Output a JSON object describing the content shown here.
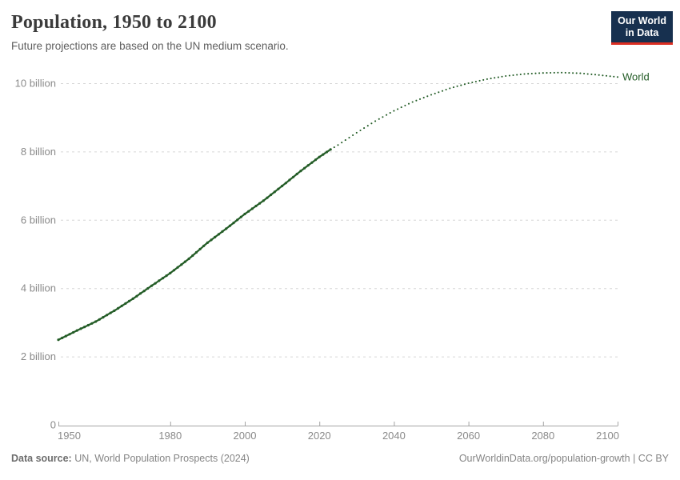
{
  "header": {
    "title": "Population, 1950 to 2100",
    "subtitle": "Future projections are based on the UN medium scenario.",
    "logo": {
      "line1": "Our World",
      "line2": "in Data"
    }
  },
  "footer": {
    "source_label": "Data source:",
    "source_text": "UN, World Population Prospects (2024)",
    "credit": "OurWorldinData.org/population-growth | CC BY"
  },
  "colors": {
    "line": "#235c26",
    "grid": "#d6d6d6",
    "axis": "#a3a3a3",
    "tick": "#8a8a8a",
    "title": "#3b3b3b",
    "sub": "#5e5e5e",
    "foot": "#858585",
    "foot-b": "#6d6d6d",
    "navy": "#17304f",
    "red": "#dc2e22"
  },
  "chart_data": {
    "type": "line",
    "title": "Population, 1950 to 2100",
    "subtitle": "Future projections are based on the UN medium scenario.",
    "series_label": "World",
    "units": "billions of people",
    "projection_start_year": 2023,
    "projection_style": "dotted",
    "x": [
      1950,
      1955,
      1960,
      1965,
      1970,
      1975,
      1980,
      1985,
      1990,
      1995,
      2000,
      2005,
      2010,
      2015,
      2020,
      2023,
      2025,
      2030,
      2035,
      2040,
      2045,
      2050,
      2055,
      2060,
      2065,
      2070,
      2075,
      2080,
      2085,
      2090,
      2095,
      2100
    ],
    "values": [
      2.49,
      2.76,
      3.02,
      3.34,
      3.69,
      4.07,
      4.44,
      4.86,
      5.33,
      5.74,
      6.17,
      6.56,
      6.99,
      7.43,
      7.84,
      8.06,
      8.19,
      8.55,
      8.89,
      9.19,
      9.45,
      9.66,
      9.85,
      10.0,
      10.12,
      10.21,
      10.27,
      10.3,
      10.31,
      10.29,
      10.24,
      10.18
    ],
    "xlabel": "",
    "ylabel": "",
    "xlim": [
      1950,
      2100
    ],
    "ylim": [
      0,
      10.6
    ],
    "xticks": [
      1950,
      1980,
      2000,
      2020,
      2040,
      2060,
      2080,
      2100
    ],
    "yticks": [
      {
        "value": 0,
        "label": "0"
      },
      {
        "value": 2,
        "label": "2 billion"
      },
      {
        "value": 4,
        "label": "4 billion"
      },
      {
        "value": 6,
        "label": "6 billion"
      },
      {
        "value": 8,
        "label": "8 billion"
      },
      {
        "value": 10,
        "label": "10 billion"
      }
    ],
    "grid": "horizontal dashed",
    "legend_position": "line-end-label"
  }
}
